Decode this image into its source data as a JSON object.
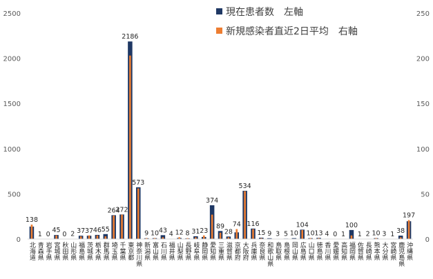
{
  "chart_data": {
    "type": "bar",
    "categories": [
      "北海道",
      "青森県",
      "岩手県",
      "宮城県",
      "秋田県",
      "山形県",
      "福島県",
      "茨城県",
      "栃木県",
      "群馬県",
      "埼玉県",
      "千葉県",
      "東京都",
      "神奈川県",
      "新潟県",
      "富山県",
      "石川県",
      "福井県",
      "山梨県",
      "長野県",
      "岐阜県",
      "静岡県",
      "愛知県",
      "三重県",
      "滋賀県",
      "京都府",
      "大阪府",
      "兵庫県",
      "奈良県",
      "和歌山県",
      "鳥取県",
      "島根県",
      "岡山県",
      "広島県",
      "山口県",
      "徳島県",
      "香川県",
      "愛媛県",
      "高知県",
      "福岡県",
      "佐賀県",
      "長崎県",
      "熊本県",
      "大分県",
      "宮崎県",
      "鹿児島県",
      "沖縄県"
    ],
    "series": [
      {
        "name": "現在患者数　左軸",
        "axis": "left",
        "color": "#1f3864",
        "values": [
          138,
          1,
          0,
          45,
          0,
          2,
          37,
          37,
          46,
          55,
          264,
          272,
          2186,
          573,
          9,
          10,
          43,
          4,
          12,
          8,
          31,
          23,
          374,
          89,
          28,
          74,
          534,
          116,
          15,
          9,
          3,
          5,
          10,
          104,
          10,
          13,
          4,
          0,
          1,
          100,
          1,
          2,
          10,
          3,
          1,
          38,
          197
        ]
      },
      {
        "name": "新規感染者直近2日平均　右軸",
        "axis": "right",
        "color": "#ed7d31",
        "values": [
          16,
          0,
          0,
          4,
          0,
          0,
          3,
          4,
          4,
          3,
          26,
          27,
          203,
          56,
          1,
          1,
          2,
          0,
          2,
          1,
          2,
          4,
          27,
          7,
          2,
          11,
          53,
          11,
          1,
          0,
          0,
          0,
          0,
          10,
          1,
          1,
          0,
          0,
          0,
          4,
          0,
          0,
          1,
          0,
          0,
          2,
          21
        ]
      }
    ],
    "data_labels": [
      "138",
      "1",
      "0",
      "45",
      "0",
      "2",
      "37",
      "37",
      "46",
      "55",
      "264",
      "272",
      "2186",
      "573",
      "9",
      "10",
      "43",
      "4",
      "12",
      "8",
      "31",
      "23",
      "374",
      "89",
      "28",
      "74",
      "534",
      "116",
      "15",
      "9",
      "3",
      "5",
      "10",
      "104",
      "10",
      "13",
      "4",
      "0",
      "1",
      "100",
      "1",
      "2",
      "10",
      "3",
      "1",
      "38",
      "197"
    ],
    "left_axis": {
      "ticks": [
        "0",
        "500",
        "1000",
        "1500",
        "2000",
        "2500"
      ],
      "ylim": [
        0,
        2500
      ]
    },
    "right_axis": {
      "ticks": [
        "0",
        "50",
        "100",
        "150",
        "200",
        "250"
      ],
      "ylim": [
        0,
        250
      ]
    },
    "legend_position": "top-right",
    "grid": false
  }
}
